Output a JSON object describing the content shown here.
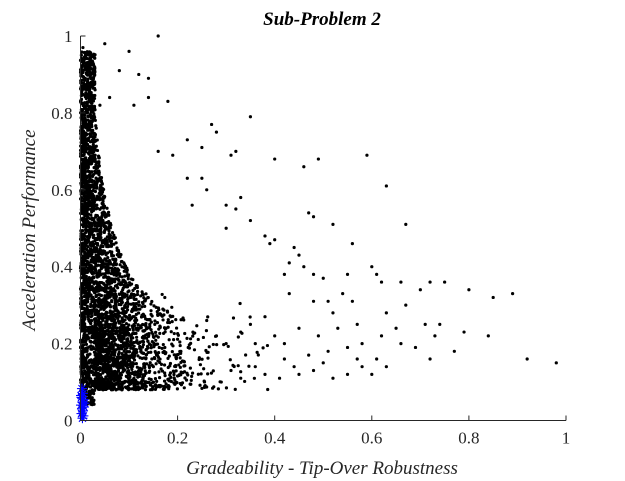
{
  "chart_data": {
    "type": "scatter",
    "title": "Sub-Problem 2",
    "xlabel": "Gradeability - Tip-Over Robustness",
    "ylabel": "Acceleration Performance",
    "xlim": [
      0,
      1
    ],
    "ylim": [
      0,
      1
    ],
    "xticks": [
      "0",
      "0.2",
      "0.4",
      "0.6",
      "0.8",
      "1"
    ],
    "yticks": [
      "0",
      "0.2",
      "0.4",
      "0.6",
      "0.8",
      "1"
    ],
    "grid": false,
    "colors": {
      "points": "#000000",
      "highlighted": "#0000ff"
    },
    "marker_styles": {
      "points": "dot",
      "highlighted": "asterisk"
    },
    "series": [
      {
        "values": [
          [
            0.005,
            0.97
          ],
          [
            0.01,
            0.95
          ],
          [
            0.02,
            0.93
          ],
          [
            0.05,
            0.98
          ],
          [
            0.1,
            0.96
          ],
          [
            0.16,
            1.0
          ],
          [
            0.08,
            0.91
          ],
          [
            0.12,
            0.9
          ],
          [
            0.14,
            0.89
          ],
          [
            0.03,
            0.86
          ],
          [
            0.06,
            0.84
          ],
          [
            0.04,
            0.82
          ],
          [
            0.11,
            0.82
          ],
          [
            0.14,
            0.84
          ],
          [
            0.18,
            0.83
          ],
          [
            0.35,
            0.79
          ],
          [
            0.27,
            0.77
          ],
          [
            0.28,
            0.75
          ],
          [
            0.22,
            0.73
          ],
          [
            0.25,
            0.71
          ],
          [
            0.16,
            0.7
          ],
          [
            0.19,
            0.69
          ],
          [
            0.32,
            0.7
          ],
          [
            0.31,
            0.69
          ],
          [
            0.4,
            0.68
          ],
          [
            0.46,
            0.66
          ],
          [
            0.49,
            0.68
          ],
          [
            0.59,
            0.69
          ],
          [
            0.63,
            0.61
          ],
          [
            0.22,
            0.63
          ],
          [
            0.25,
            0.63
          ],
          [
            0.26,
            0.6
          ],
          [
            0.23,
            0.56
          ],
          [
            0.3,
            0.56
          ],
          [
            0.33,
            0.58
          ],
          [
            0.32,
            0.55
          ],
          [
            0.35,
            0.52
          ],
          [
            0.3,
            0.5
          ],
          [
            0.38,
            0.48
          ],
          [
            0.4,
            0.47
          ],
          [
            0.39,
            0.46
          ],
          [
            0.47,
            0.54
          ],
          [
            0.48,
            0.53
          ],
          [
            0.52,
            0.51
          ],
          [
            0.56,
            0.46
          ],
          [
            0.67,
            0.51
          ],
          [
            0.44,
            0.45
          ],
          [
            0.45,
            0.43
          ],
          [
            0.43,
            0.41
          ],
          [
            0.46,
            0.4
          ],
          [
            0.42,
            0.38
          ],
          [
            0.48,
            0.38
          ],
          [
            0.5,
            0.37
          ],
          [
            0.55,
            0.38
          ],
          [
            0.6,
            0.4
          ],
          [
            0.61,
            0.38
          ],
          [
            0.62,
            0.36
          ],
          [
            0.66,
            0.36
          ],
          [
            0.7,
            0.34
          ],
          [
            0.72,
            0.36
          ],
          [
            0.75,
            0.36
          ],
          [
            0.8,
            0.34
          ],
          [
            0.85,
            0.32
          ],
          [
            0.89,
            0.33
          ],
          [
            0.43,
            0.33
          ],
          [
            0.48,
            0.31
          ],
          [
            0.54,
            0.33
          ],
          [
            0.51,
            0.31
          ],
          [
            0.56,
            0.31
          ],
          [
            0.52,
            0.28
          ],
          [
            0.63,
            0.28
          ],
          [
            0.67,
            0.3
          ],
          [
            0.71,
            0.25
          ],
          [
            0.74,
            0.25
          ],
          [
            0.73,
            0.22
          ],
          [
            0.79,
            0.23
          ],
          [
            0.84,
            0.22
          ],
          [
            0.92,
            0.16
          ],
          [
            0.98,
            0.15
          ],
          [
            0.65,
            0.24
          ],
          [
            0.62,
            0.22
          ],
          [
            0.58,
            0.2
          ],
          [
            0.55,
            0.19
          ],
          [
            0.51,
            0.18
          ],
          [
            0.57,
            0.16
          ],
          [
            0.61,
            0.16
          ],
          [
            0.63,
            0.14
          ],
          [
            0.6,
            0.12
          ],
          [
            0.66,
            0.2
          ],
          [
            0.69,
            0.19
          ],
          [
            0.77,
            0.18
          ],
          [
            0.72,
            0.16
          ],
          [
            0.58,
            0.14
          ],
          [
            0.5,
            0.15
          ],
          [
            0.47,
            0.17
          ],
          [
            0.44,
            0.14
          ],
          [
            0.42,
            0.16
          ],
          [
            0.45,
            0.12
          ],
          [
            0.48,
            0.13
          ],
          [
            0.52,
            0.11
          ],
          [
            0.55,
            0.12
          ],
          [
            0.41,
            0.11
          ],
          [
            0.38,
            0.12
          ],
          [
            0.36,
            0.14
          ],
          [
            0.33,
            0.11
          ],
          [
            0.31,
            0.13
          ],
          [
            0.29,
            0.1
          ],
          [
            0.38,
            0.27
          ],
          [
            0.35,
            0.25
          ],
          [
            0.33,
            0.23
          ],
          [
            0.3,
            0.2
          ],
          [
            0.28,
            0.22
          ],
          [
            0.26,
            0.26
          ],
          [
            0.36,
            0.2
          ],
          [
            0.4,
            0.22
          ],
          [
            0.42,
            0.2
          ],
          [
            0.45,
            0.24
          ],
          [
            0.49,
            0.22
          ],
          [
            0.53,
            0.24
          ],
          [
            0.57,
            0.25
          ]
        ]
      },
      {
        "values": [
          [
            0.003,
            0.083
          ],
          [
            0.005,
            0.07
          ],
          [
            0.002,
            0.06
          ],
          [
            0.006,
            0.055
          ],
          [
            0.004,
            0.048
          ],
          [
            0.001,
            0.04
          ],
          [
            0.007,
            0.035
          ],
          [
            0.003,
            0.03
          ],
          [
            0.005,
            0.025
          ],
          [
            0.002,
            0.018
          ],
          [
            0.006,
            0.012
          ],
          [
            0.004,
            0.006
          ],
          [
            0.008,
            0.045
          ],
          [
            0.001,
            0.065
          ]
        ]
      }
    ],
    "generated_cloud": {
      "count": 3600,
      "seed": 20231,
      "x_decay": 0.055,
      "y_decay": 0.32
    }
  }
}
